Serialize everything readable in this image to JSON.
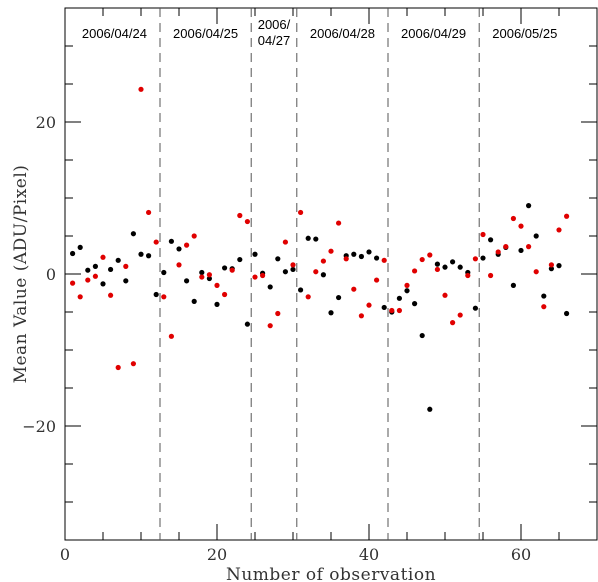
{
  "chart_data": {
    "type": "scatter",
    "title": "",
    "xlabel": "Number of observation",
    "ylabel": "Mean Value (ADU/Pixel)",
    "xlim": [
      0,
      70
    ],
    "ylim": [
      -35,
      35
    ],
    "x_ticks": [
      0,
      20,
      40,
      60
    ],
    "y_ticks": [
      -20,
      0,
      20
    ],
    "x_tick_labels": [
      "0",
      "20",
      "40",
      "60"
    ],
    "y_tick_labels": [
      "−20",
      "0",
      "20"
    ],
    "grid": false,
    "legend": "none",
    "dividers": [
      12.5,
      24.5,
      30.5,
      42.5,
      54.5
    ],
    "date_groups": [
      {
        "label": "2006/04/24",
        "center": 6.5
      },
      {
        "label": "2006/04/25",
        "center": 18.5
      },
      {
        "label": "2006/\n04/27",
        "center": 27.5
      },
      {
        "label": "2006/04/28",
        "center": 36.5
      },
      {
        "label": "2006/04/29",
        "center": 48.5
      },
      {
        "label": "2006/05/25",
        "center": 60.5
      }
    ],
    "series": [
      {
        "color": "#000000",
        "points": [
          [
            1,
            2.7
          ],
          [
            2,
            3.5
          ],
          [
            3,
            0.5
          ],
          [
            4,
            1.0
          ],
          [
            5,
            -1.3
          ],
          [
            6,
            0.6
          ],
          [
            7,
            1.8
          ],
          [
            8,
            -0.9
          ],
          [
            9,
            5.3
          ],
          [
            10,
            2.6
          ],
          [
            11,
            2.4
          ],
          [
            12,
            -2.7
          ],
          [
            13,
            0.2
          ],
          [
            14,
            4.3
          ],
          [
            15,
            3.3
          ],
          [
            16,
            -0.9
          ],
          [
            17,
            -3.6
          ],
          [
            18,
            0.2
          ],
          [
            19,
            -0.6
          ],
          [
            20,
            -4.0
          ],
          [
            21,
            0.8
          ],
          [
            22,
            0.7
          ],
          [
            23,
            1.9
          ],
          [
            24,
            -6.6
          ],
          [
            25,
            2.6
          ],
          [
            26,
            0.1
          ],
          [
            27,
            -1.7
          ],
          [
            28,
            2.0
          ],
          [
            29,
            0.3
          ],
          [
            30,
            0.6
          ],
          [
            31,
            -2.1
          ],
          [
            32,
            4.7
          ],
          [
            33,
            4.6
          ],
          [
            34,
            -0.1
          ],
          [
            35,
            -5.1
          ],
          [
            36,
            -3.1
          ],
          [
            37,
            2.4
          ],
          [
            38,
            2.6
          ],
          [
            39,
            2.3
          ],
          [
            40,
            2.9
          ],
          [
            41,
            2.1
          ],
          [
            42,
            -4.4
          ],
          [
            43,
            -5.0
          ],
          [
            44,
            -3.2
          ],
          [
            45,
            -2.2
          ],
          [
            46,
            -3.9
          ],
          [
            47,
            -8.1
          ],
          [
            48,
            -17.8
          ],
          [
            49,
            1.3
          ],
          [
            50,
            0.9
          ],
          [
            51,
            1.6
          ],
          [
            52,
            0.9
          ],
          [
            53,
            0.2
          ],
          [
            54,
            -4.5
          ],
          [
            55,
            2.1
          ],
          [
            56,
            4.5
          ],
          [
            57,
            2.6
          ],
          [
            58,
            3.5
          ],
          [
            59,
            -1.5
          ],
          [
            60,
            3.1
          ],
          [
            61,
            9.0
          ],
          [
            62,
            5.0
          ],
          [
            63,
            -2.9
          ],
          [
            64,
            0.7
          ],
          [
            65,
            1.1
          ],
          [
            66,
            -5.2
          ]
        ]
      },
      {
        "color": "#e00000",
        "points": [
          [
            1,
            -1.2
          ],
          [
            2,
            -3.0
          ],
          [
            3,
            -0.8
          ],
          [
            4,
            -0.3
          ],
          [
            5,
            2.2
          ],
          [
            6,
            -2.8
          ],
          [
            7,
            -12.3
          ],
          [
            8,
            1.0
          ],
          [
            9,
            -11.8
          ],
          [
            10,
            24.3
          ],
          [
            11,
            8.1
          ],
          [
            12,
            4.2
          ],
          [
            13,
            -3.0
          ],
          [
            14,
            -8.2
          ],
          [
            15,
            1.2
          ],
          [
            16,
            3.8
          ],
          [
            17,
            5.0
          ],
          [
            18,
            -0.4
          ],
          [
            19,
            -0.1
          ],
          [
            20,
            -1.5
          ],
          [
            21,
            -2.7
          ],
          [
            22,
            0.5
          ],
          [
            23,
            7.7
          ],
          [
            24,
            6.9
          ],
          [
            25,
            -0.4
          ],
          [
            26,
            -0.2
          ],
          [
            27,
            -6.8
          ],
          [
            28,
            -5.2
          ],
          [
            29,
            4.2
          ],
          [
            30,
            1.2
          ],
          [
            31,
            8.1
          ],
          [
            32,
            -3.0
          ],
          [
            33,
            0.3
          ],
          [
            34,
            1.7
          ],
          [
            35,
            3.0
          ],
          [
            36,
            6.7
          ],
          [
            37,
            2.0
          ],
          [
            38,
            -2.0
          ],
          [
            39,
            -5.5
          ],
          [
            40,
            -4.1
          ],
          [
            41,
            -0.8
          ],
          [
            42,
            1.8
          ],
          [
            43,
            -4.8
          ],
          [
            44,
            -4.8
          ],
          [
            45,
            -1.5
          ],
          [
            46,
            0.4
          ],
          [
            47,
            1.9
          ],
          [
            48,
            2.5
          ],
          [
            49,
            0.6
          ],
          [
            50,
            -2.8
          ],
          [
            51,
            -6.4
          ],
          [
            52,
            -5.4
          ],
          [
            53,
            -0.2
          ],
          [
            54,
            2.0
          ],
          [
            55,
            5.2
          ],
          [
            56,
            -0.2
          ],
          [
            57,
            2.9
          ],
          [
            58,
            3.6
          ],
          [
            59,
            7.3
          ],
          [
            60,
            6.3
          ],
          [
            61,
            3.6
          ],
          [
            62,
            0.3
          ],
          [
            63,
            -4.3
          ],
          [
            64,
            1.2
          ],
          [
            65,
            5.8
          ],
          [
            66,
            7.6
          ]
        ]
      }
    ]
  }
}
